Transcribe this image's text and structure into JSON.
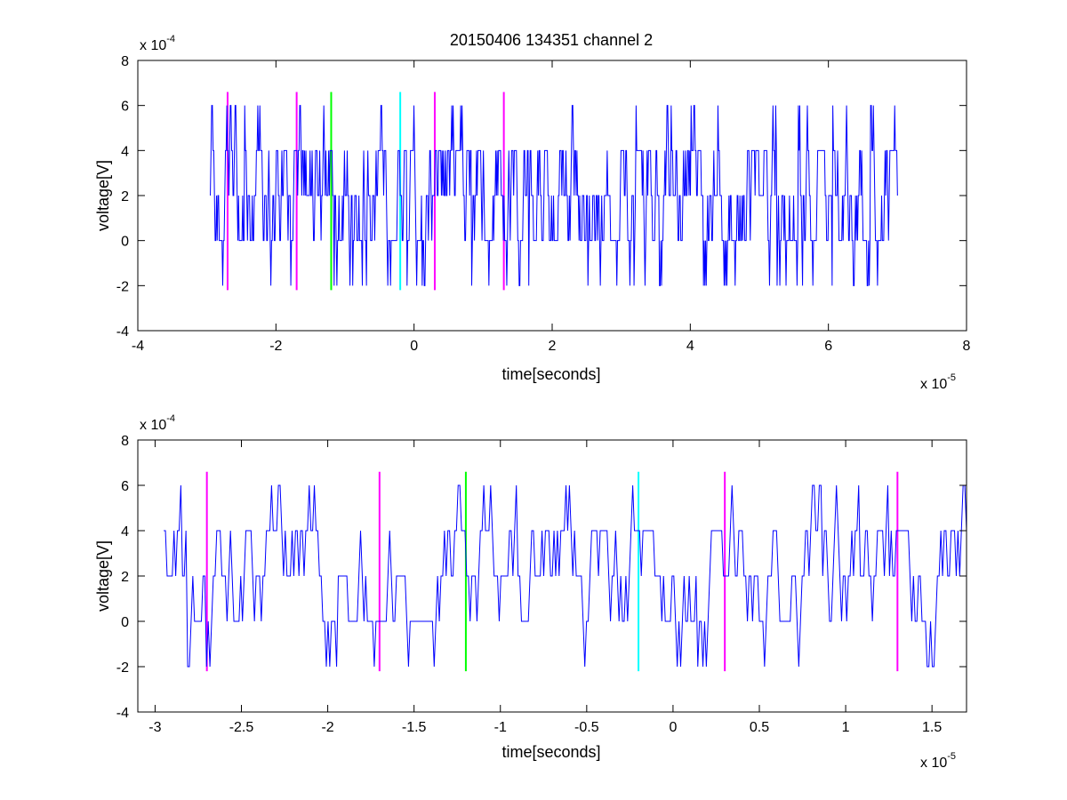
{
  "figure": {
    "title": "20150406 134351 channel 2"
  },
  "colors": {
    "signal": "#0000ff",
    "marker_magenta": "#ff00ff",
    "marker_green": "#00ff00",
    "marker_cyan": "#00ffff",
    "axes": "#000000",
    "background": "#ffffff"
  },
  "chart_data": [
    {
      "type": "line",
      "title": "20150406 134351 channel 2",
      "xlabel": "time[seconds]",
      "ylabel": "voltage[V]",
      "x_multiplier_label": "x 10",
      "x_multiplier_exp": "-5",
      "y_multiplier_label": "x 10",
      "y_multiplier_exp": "-4",
      "xlim": [
        -4e-05,
        8e-05
      ],
      "ylim": [
        -0.0004,
        0.0008
      ],
      "xticks": [
        -4,
        -2,
        0,
        2,
        4,
        6,
        8
      ],
      "xtick_labels": [
        "-4",
        "-2",
        "0",
        "2",
        "4",
        "6",
        "8"
      ],
      "yticks": [
        -4,
        -2,
        0,
        2,
        4,
        6,
        8
      ],
      "ytick_labels": [
        "-4",
        "-2",
        "0",
        "2",
        "4",
        "6",
        "8"
      ],
      "grid": false,
      "series": [
        {
          "color": "#0000ff",
          "x_start": -2.95e-05,
          "x_end": 7e-05,
          "levels": [
            -0.0002,
            0,
            0.0002,
            0.0004,
            0.0006
          ],
          "seed": 20150406,
          "samples": 1000
        }
      ],
      "markers": [
        {
          "x": -2.7e-05,
          "color": "magenta",
          "y_range": [
            -0.00022,
            0.00066
          ]
        },
        {
          "x": -1.7e-05,
          "color": "magenta",
          "y_range": [
            -0.00022,
            0.00066
          ]
        },
        {
          "x": -1.2e-05,
          "color": "green",
          "y_range": [
            -0.00022,
            0.00066
          ]
        },
        {
          "x": -2e-06,
          "color": "cyan",
          "y_range": [
            -0.00022,
            0.00066
          ]
        },
        {
          "x": 3e-06,
          "color": "magenta",
          "y_range": [
            -0.00022,
            0.00066
          ]
        },
        {
          "x": 1.3e-05,
          "color": "magenta",
          "y_range": [
            -0.00022,
            0.00066
          ]
        }
      ]
    },
    {
      "type": "line",
      "title": "",
      "xlabel": "time[seconds]",
      "ylabel": "voltage[V]",
      "x_multiplier_label": "x 10",
      "x_multiplier_exp": "-5",
      "y_multiplier_label": "x 10",
      "y_multiplier_exp": "-4",
      "xlim": [
        -3.1e-05,
        1.7e-05
      ],
      "ylim": [
        -0.0004,
        0.0008
      ],
      "xticks": [
        -3,
        -2.5,
        -2,
        -1.5,
        -1,
        -0.5,
        0,
        0.5,
        1,
        1.5
      ],
      "xtick_labels": [
        "-3",
        "-2.5",
        "-2",
        "-1.5",
        "-1",
        "-0.5",
        "0",
        "0.5",
        "1",
        "1.5"
      ],
      "yticks": [
        -4,
        -2,
        0,
        2,
        4,
        6,
        8
      ],
      "ytick_labels": [
        "-4",
        "-2",
        "0",
        "2",
        "4",
        "6",
        "8"
      ],
      "grid": false,
      "series": [
        {
          "color": "#0000ff",
          "x_start": -2.95e-05,
          "x_end": 1.7e-05,
          "levels": [
            -0.0002,
            0,
            0.0002,
            0.0004,
            0.0006
          ],
          "seed": 134351,
          "samples": 470
        }
      ],
      "markers": [
        {
          "x": -2.7e-05,
          "color": "magenta",
          "y_range": [
            -0.00022,
            0.00066
          ]
        },
        {
          "x": -1.7e-05,
          "color": "magenta",
          "y_range": [
            -0.00022,
            0.00066
          ]
        },
        {
          "x": -1.2e-05,
          "color": "green",
          "y_range": [
            -0.00022,
            0.00066
          ]
        },
        {
          "x": -2e-06,
          "color": "cyan",
          "y_range": [
            -0.00022,
            0.00066
          ]
        },
        {
          "x": 3e-06,
          "color": "magenta",
          "y_range": [
            -0.00022,
            0.00066
          ]
        },
        {
          "x": 1.3e-05,
          "color": "magenta",
          "y_range": [
            -0.00022,
            0.00066
          ]
        }
      ]
    }
  ]
}
